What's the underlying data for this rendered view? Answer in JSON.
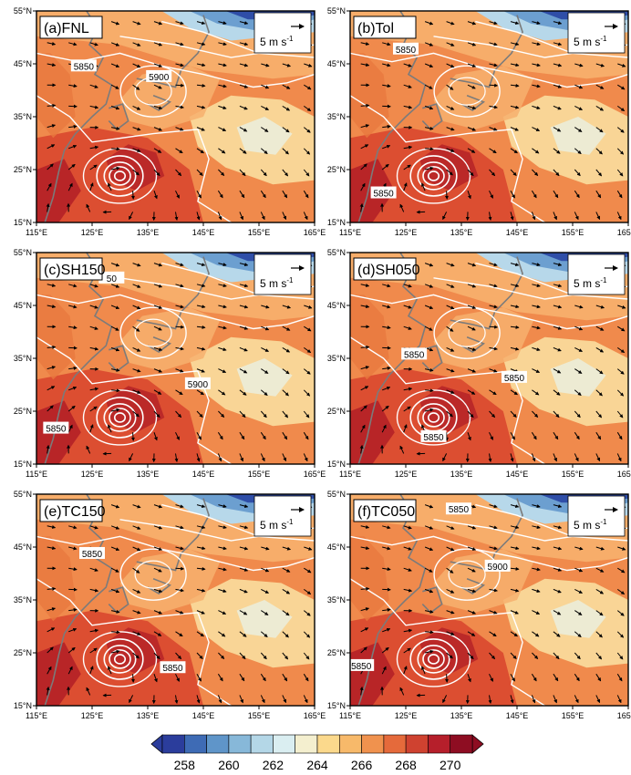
{
  "figure": {
    "panels": [
      {
        "label": "(a)FNL",
        "contour_labels": [
          "5850",
          "5900"
        ]
      },
      {
        "label": "(b)Tol",
        "contour_labels": [
          "5850",
          "5850"
        ]
      },
      {
        "label": "(c)SH150",
        "contour_labels": [
          "50",
          "5900",
          "5850"
        ]
      },
      {
        "label": "(d)SH050",
        "contour_labels": [
          "5850",
          "5850",
          "5850"
        ]
      },
      {
        "label": "(e)TC150",
        "contour_labels": [
          "5850",
          "5850"
        ]
      },
      {
        "label": "(f)TC050",
        "contour_labels": [
          "5850",
          "5900",
          "5850"
        ]
      }
    ],
    "reference_vector": {
      "text": "5 m s",
      "superscript": "-1"
    },
    "lon_ticks": [
      "115°E",
      "125°E",
      "135°E",
      "145°E",
      "155°E",
      "165°E"
    ],
    "lat_ticks": [
      "55°N",
      "45°N",
      "35°N",
      "25°N",
      "15°N"
    ],
    "colorbar": {
      "colors": [
        "#2b3d9c",
        "#3e6bb5",
        "#5f95c9",
        "#87b8d9",
        "#b4d7e7",
        "#daeef1",
        "#f4efcf",
        "#fbd98c",
        "#f7b96a",
        "#f0924e",
        "#e56a3b",
        "#cf4230",
        "#b61f2b",
        "#8e0d22"
      ],
      "labels": [
        "258",
        "260",
        "262",
        "264",
        "266",
        "268",
        "270"
      ]
    },
    "palette": {
      "warm_base": "#f08a4c",
      "warm_light": "#f7b06e",
      "pale": "#f9d99a",
      "hot": "#d9472f",
      "hotter": "#b52327",
      "cold1": "#2f4ea8",
      "cold2": "#6c9fd0",
      "cold3": "#b7d8ea"
    }
  }
}
